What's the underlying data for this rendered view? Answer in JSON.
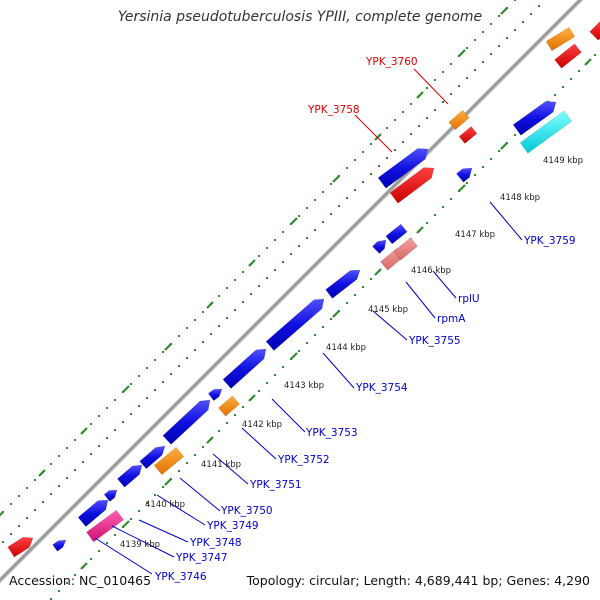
{
  "title": "Yersinia pseudotuberculosis YPIII, complete genome",
  "footer": {
    "accession": "Accession: NC_010465",
    "topology": "Topology: circular; Length: 4,689,441 bp; Genes: 4,290"
  },
  "colors": {
    "backbone": "#888888",
    "tick": "#2e8b2e",
    "cds": "#1010e0",
    "trna": "#ff8c00",
    "pseudo": "#ee0000",
    "rrna_light": "#e87878",
    "misc": "#00e5ee",
    "pink": "#ee2090",
    "label_blue": "#0000cc",
    "label_red": "#dd0000"
  },
  "ticks": [
    "4139 kbp",
    "4140 kbp",
    "4141 kbp",
    "4142 kbp",
    "4143 kbp",
    "4144 kbp",
    "4145 kbp",
    "4146 kbp",
    "4147 kbp",
    "4148 kbp",
    "4149 kbp"
  ],
  "gene_labels": [
    "YPK_3746",
    "YPK_3747",
    "YPK_3748",
    "YPK_3749",
    "YPK_3750",
    "YPK_3751",
    "YPK_3752",
    "YPK_3753",
    "YPK_3754",
    "YPK_3755",
    "rpmA",
    "rplU",
    "YPK_3759",
    "YPK_3758",
    "YPK_3760"
  ]
}
